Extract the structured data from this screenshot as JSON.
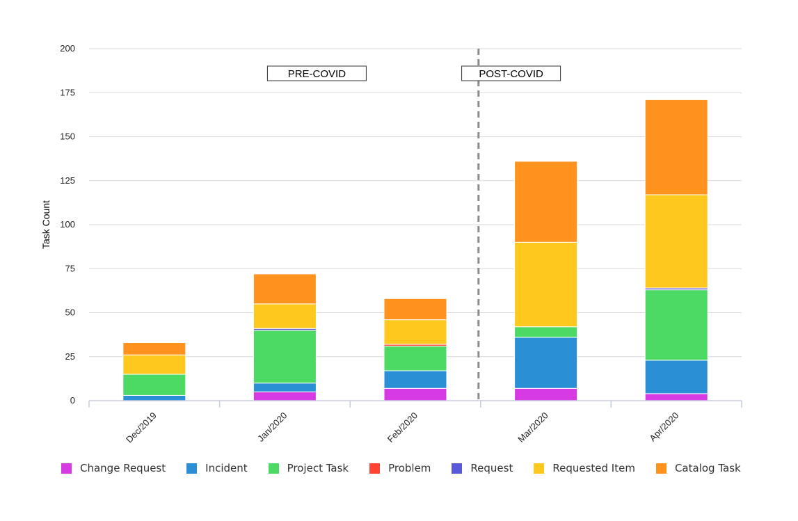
{
  "chart_data": {
    "type": "bar",
    "stacked": true,
    "ylabel": "Task Count",
    "xlabel": "",
    "ylim": [
      0,
      200
    ],
    "yticks": [
      0,
      25,
      50,
      75,
      100,
      125,
      150,
      175,
      200
    ],
    "grid": true,
    "legend_position": "bottom",
    "categories": [
      "Dec/2019",
      "Jan/2020",
      "Feb/2020",
      "Mar/2020",
      "Apr/2020"
    ],
    "series": [
      {
        "name": "Change Request",
        "color": "#d63be3",
        "values": [
          0,
          5,
          7,
          7,
          4
        ]
      },
      {
        "name": "Incident",
        "color": "#2a8fd4",
        "values": [
          3,
          5,
          10,
          29,
          19
        ]
      },
      {
        "name": "Project Task",
        "color": "#4cd964",
        "values": [
          12,
          30,
          14,
          6,
          40
        ]
      },
      {
        "name": "Problem",
        "color": "#ff4433",
        "values": [
          0,
          0,
          1,
          0,
          0
        ]
      },
      {
        "name": "Request",
        "color": "#5959d9",
        "values": [
          0,
          1,
          0,
          0,
          1
        ]
      },
      {
        "name": "Requested Item",
        "color": "#ffc81f",
        "values": [
          11,
          14,
          14,
          48,
          53
        ]
      },
      {
        "name": "Catalog Task",
        "color": "#ff931e",
        "values": [
          7,
          17,
          12,
          46,
          54
        ]
      }
    ],
    "annotations": [
      {
        "label": "PRE-COVID"
      },
      {
        "label": "POST-COVID"
      }
    ],
    "divider_after_category": "Feb/2020"
  }
}
